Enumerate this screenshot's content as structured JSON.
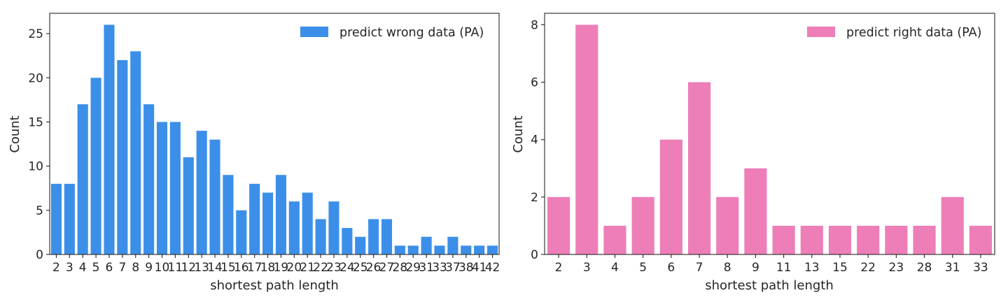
{
  "chart_data": [
    {
      "type": "bar",
      "xlabel": "shortest path length",
      "ylabel": "Count",
      "ylim": [
        0,
        27.3
      ],
      "yticks": [
        0,
        5,
        10,
        15,
        20,
        25
      ],
      "grid": false,
      "legend_placement": "top-right",
      "categories": [
        "2",
        "3",
        "4",
        "5",
        "6",
        "7",
        "8",
        "9",
        "10",
        "11",
        "12",
        "13",
        "14",
        "15",
        "16",
        "17",
        "18",
        "19",
        "20",
        "21",
        "22",
        "23",
        "24",
        "25",
        "26",
        "27",
        "28",
        "29",
        "31",
        "33",
        "37",
        "38",
        "41",
        "42"
      ],
      "series": [
        {
          "name": "predict wrong data (PA)",
          "color": "#3c8fe8",
          "values": [
            8,
            8,
            17,
            20,
            26,
            22,
            23,
            17,
            15,
            15,
            11,
            14,
            13,
            9,
            5,
            8,
            7,
            9,
            6,
            7,
            4,
            6,
            3,
            2,
            4,
            4,
            1,
            1,
            2,
            1,
            2,
            1,
            1,
            1
          ]
        }
      ]
    },
    {
      "type": "bar",
      "xlabel": "shortest path length",
      "ylabel": "Count",
      "ylim": [
        0,
        8.4
      ],
      "yticks": [
        0,
        2,
        4,
        6,
        8
      ],
      "grid": false,
      "legend_placement": "top-right",
      "categories": [
        "2",
        "3",
        "4",
        "5",
        "6",
        "7",
        "8",
        "9",
        "11",
        "13",
        "15",
        "22",
        "23",
        "28",
        "31",
        "33"
      ],
      "series": [
        {
          "name": "predict right data (PA)",
          "color": "#ed7eb8",
          "values": [
            2,
            8,
            1,
            2,
            4,
            6,
            2,
            3,
            1,
            1,
            1,
            1,
            1,
            1,
            2,
            1
          ]
        }
      ]
    }
  ]
}
